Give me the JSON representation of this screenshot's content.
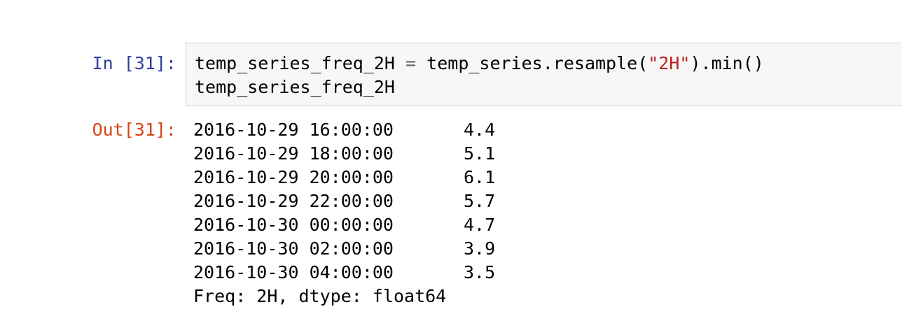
{
  "cell": {
    "input_prompt": "In [31]:",
    "output_prompt": "Out[31]:",
    "code": {
      "line1": {
        "var": "temp_series_freq_2H",
        "eq": "=",
        "call_prefix": "temp_series.resample(",
        "arg": "\"2H\"",
        "call_suffix": ").min()"
      },
      "line2": "temp_series_freq_2H"
    },
    "output": {
      "rows": [
        {
          "timestamp": "2016-10-29 16:00:00",
          "value": "4.4"
        },
        {
          "timestamp": "2016-10-29 18:00:00",
          "value": "5.1"
        },
        {
          "timestamp": "2016-10-29 20:00:00",
          "value": "6.1"
        },
        {
          "timestamp": "2016-10-29 22:00:00",
          "value": "5.7"
        },
        {
          "timestamp": "2016-10-30 00:00:00",
          "value": "4.7"
        },
        {
          "timestamp": "2016-10-30 02:00:00",
          "value": "3.9"
        },
        {
          "timestamp": "2016-10-30 04:00:00",
          "value": "3.5"
        }
      ],
      "footer": "Freq: 2H, dtype: float64"
    }
  }
}
